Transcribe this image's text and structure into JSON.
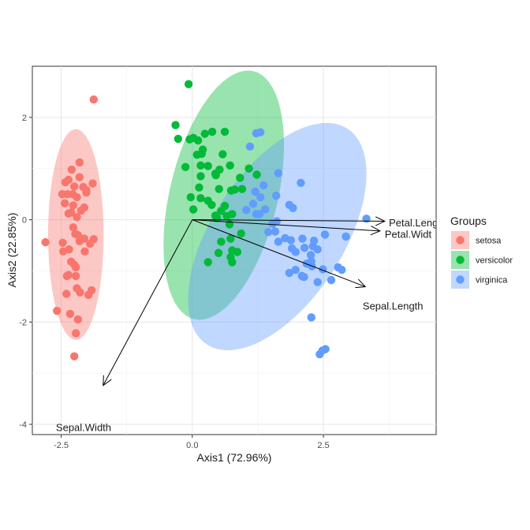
{
  "chart_data": {
    "type": "scatter",
    "subtype": "pca-biplot",
    "title": "",
    "xlabel": "Axis1 (72.96%)",
    "ylabel": "Axis2 (22.85%)",
    "xlim": [
      -3.05,
      4.65
    ],
    "ylim": [
      -4.2,
      3.0
    ],
    "xticks": [
      -2.5,
      0.0,
      2.5
    ],
    "xtick_labels": [
      "-2.5",
      "0.0",
      "2.5"
    ],
    "yticks": [
      -4,
      -2,
      0,
      2
    ],
    "ytick_labels": [
      "-4",
      "-2",
      "0",
      "2"
    ],
    "grid": true,
    "legend": {
      "title": "Groups",
      "position": "right"
    },
    "series": [
      {
        "name": "setosa",
        "color": "#F8766D",
        "ellipse": {
          "cx": -2.22,
          "cy": -0.29,
          "rx": 0.53,
          "ry": 2.06,
          "angle_deg": 0
        },
        "points": [
          [
            -1.88,
            2.35
          ],
          [
            -2.3,
            0.98
          ],
          [
            -2.42,
            0.73
          ],
          [
            -2.15,
            1.12
          ],
          [
            -2.02,
            0.58
          ],
          [
            -2.48,
            0.5
          ],
          [
            -2.36,
            0.78
          ],
          [
            -2.27,
            0.28
          ],
          [
            -2.02,
            0.53
          ],
          [
            -1.9,
            0.71
          ],
          [
            -2.08,
            0.64
          ],
          [
            -2.2,
            0.44
          ],
          [
            -2.43,
            0.32
          ],
          [
            -2.31,
            0.14
          ],
          [
            -2.12,
            0.18
          ],
          [
            -2.2,
            0.05
          ],
          [
            -2.36,
            0.12
          ],
          [
            -2.06,
            0.24
          ],
          [
            -2.25,
            0.65
          ],
          [
            -2.38,
            0.5
          ],
          [
            -2.15,
            0.83
          ],
          [
            -2.28,
            0.5
          ],
          [
            -2.8,
            -0.44
          ],
          [
            -2.47,
            -0.45
          ],
          [
            -2.18,
            -0.3
          ],
          [
            -2.06,
            -0.37
          ],
          [
            -2.27,
            -0.15
          ],
          [
            -2.46,
            -0.62
          ],
          [
            -2.35,
            -0.58
          ],
          [
            -2.15,
            -0.42
          ],
          [
            -2.23,
            -0.28
          ],
          [
            -1.88,
            -0.38
          ],
          [
            -1.95,
            -0.47
          ],
          [
            -2.05,
            -0.62
          ],
          [
            -2.31,
            -0.82
          ],
          [
            -2.22,
            -0.93
          ],
          [
            -2.36,
            -1.08
          ],
          [
            -2.22,
            -1.1
          ],
          [
            -2.39,
            -1.1
          ],
          [
            -2.2,
            -1.34
          ],
          [
            -2.14,
            -1.42
          ],
          [
            -1.98,
            -1.47
          ],
          [
            -2.4,
            -1.45
          ],
          [
            -1.92,
            -1.38
          ],
          [
            -2.58,
            -1.78
          ],
          [
            -2.33,
            -1.84
          ],
          [
            -2.22,
            -2.22
          ],
          [
            -2.18,
            -1.95
          ],
          [
            -2.25,
            -0.88
          ],
          [
            -2.25,
            -2.67
          ]
        ]
      },
      {
        "name": "versicolor",
        "color": "#00BA38",
        "ellipse": {
          "cx": 0.6,
          "cy": 0.48,
          "rx": 1.03,
          "ry": 2.49,
          "angle_deg": -13
        },
        "points": [
          [
            -0.07,
            2.65
          ],
          [
            -0.27,
            1.58
          ],
          [
            -0.05,
            1.57
          ],
          [
            -0.32,
            1.85
          ],
          [
            0.02,
            1.6
          ],
          [
            0.24,
            1.68
          ],
          [
            0.38,
            1.72
          ],
          [
            0.62,
            1.72
          ],
          [
            0.11,
            1.55
          ],
          [
            0.09,
            1.27
          ],
          [
            0.18,
            1.29
          ],
          [
            0.58,
            1.28
          ],
          [
            0.16,
            1.06
          ],
          [
            0.3,
            1.05
          ],
          [
            0.2,
            1.37
          ],
          [
            -0.13,
            1.03
          ],
          [
            0.16,
            0.85
          ],
          [
            0.72,
            1.06
          ],
          [
            0.52,
            0.98
          ],
          [
            0.44,
            0.9
          ],
          [
            0.45,
            0.87
          ],
          [
            0.51,
            0.6
          ],
          [
            0.74,
            0.57
          ],
          [
            0.95,
            0.6
          ],
          [
            0.81,
            0.59
          ],
          [
            0.91,
            0.82
          ],
          [
            1.08,
            1.0
          ],
          [
            1.23,
            0.88
          ],
          [
            0.13,
            0.63
          ],
          [
            -0.03,
            0.44
          ],
          [
            0.16,
            0.42
          ],
          [
            0.02,
            0.2
          ],
          [
            0.3,
            0.37
          ],
          [
            0.37,
            0.29
          ],
          [
            0.55,
            0.17
          ],
          [
            0.62,
            0.27
          ],
          [
            0.47,
            0.03
          ],
          [
            0.66,
            0.07
          ],
          [
            0.76,
            0.11
          ],
          [
            0.44,
            0.08
          ],
          [
            0.71,
            -0.09
          ],
          [
            0.93,
            -0.27
          ],
          [
            0.73,
            -0.37
          ],
          [
            0.55,
            -0.43
          ],
          [
            0.76,
            -0.6
          ],
          [
            0.86,
            -0.63
          ],
          [
            0.73,
            -0.73
          ],
          [
            0.5,
            -0.65
          ],
          [
            0.3,
            -0.83
          ],
          [
            0.76,
            -0.83
          ]
        ]
      },
      {
        "name": "virginica",
        "color": "#619CFF",
        "ellipse": {
          "cx": 1.62,
          "cy": -0.33,
          "rx": 1.26,
          "ry": 2.5,
          "angle_deg": -32
        },
        "points": [
          [
            1.3,
            1.71
          ],
          [
            1.22,
            1.69
          ],
          [
            1.1,
            1.43
          ],
          [
            1.64,
            0.91
          ],
          [
            2.07,
            0.72
          ],
          [
            1.36,
            0.67
          ],
          [
            1.2,
            0.55
          ],
          [
            1.6,
            0.47
          ],
          [
            1.3,
            0.44
          ],
          [
            1.16,
            0.31
          ],
          [
            1.85,
            0.29
          ],
          [
            1.92,
            0.23
          ],
          [
            1.22,
            0.11
          ],
          [
            1.39,
            0.2
          ],
          [
            3.32,
            0.02
          ],
          [
            1.03,
            0.19
          ],
          [
            1.28,
            0.11
          ],
          [
            1.53,
            -0.08
          ],
          [
            1.61,
            -0.03
          ],
          [
            1.58,
            -0.23
          ],
          [
            1.77,
            -0.36
          ],
          [
            1.45,
            -0.24
          ],
          [
            1.64,
            -0.43
          ],
          [
            1.88,
            -0.4
          ],
          [
            1.9,
            -0.56
          ],
          [
            2.14,
            -0.55
          ],
          [
            2.3,
            -0.52
          ],
          [
            2.1,
            -0.37
          ],
          [
            2.32,
            -0.41
          ],
          [
            2.39,
            -0.58
          ],
          [
            2.53,
            -0.29
          ],
          [
            2.93,
            -0.33
          ],
          [
            1.97,
            -0.63
          ],
          [
            2.26,
            -0.69
          ],
          [
            2.27,
            -0.81
          ],
          [
            2.18,
            -0.86
          ],
          [
            2.28,
            -0.91
          ],
          [
            1.97,
            -0.98
          ],
          [
            1.85,
            -1.04
          ],
          [
            2.09,
            -1.1
          ],
          [
            2.13,
            -1.12
          ],
          [
            2.39,
            -1.22
          ],
          [
            2.49,
            -0.97
          ],
          [
            2.65,
            -1.18
          ],
          [
            2.78,
            -0.93
          ],
          [
            2.85,
            -0.98
          ],
          [
            2.27,
            -1.91
          ],
          [
            2.54,
            -2.53
          ],
          [
            2.48,
            -2.56
          ],
          [
            2.43,
            -2.63
          ]
        ]
      }
    ],
    "loadings": [
      {
        "name": "Petal.Length",
        "x": 3.67,
        "y": -0.03,
        "label_text": "Petal.Leng",
        "label_x": 3.75,
        "label_y": -0.05
      },
      {
        "name": "Petal.Width",
        "x": 3.58,
        "y": -0.22,
        "label_text": "Petal.Widt",
        "label_x": 3.67,
        "label_y": -0.28
      },
      {
        "name": "Sepal.Length",
        "x": 3.3,
        "y": -1.31,
        "label_text": "Sepal.Length",
        "label_x": 3.25,
        "label_y": -1.68
      },
      {
        "name": "Sepal.Width",
        "x": -1.7,
        "y": -3.24,
        "label_text": "Sepal.Width",
        "label_x": -2.6,
        "label_y": -4.05
      }
    ]
  }
}
